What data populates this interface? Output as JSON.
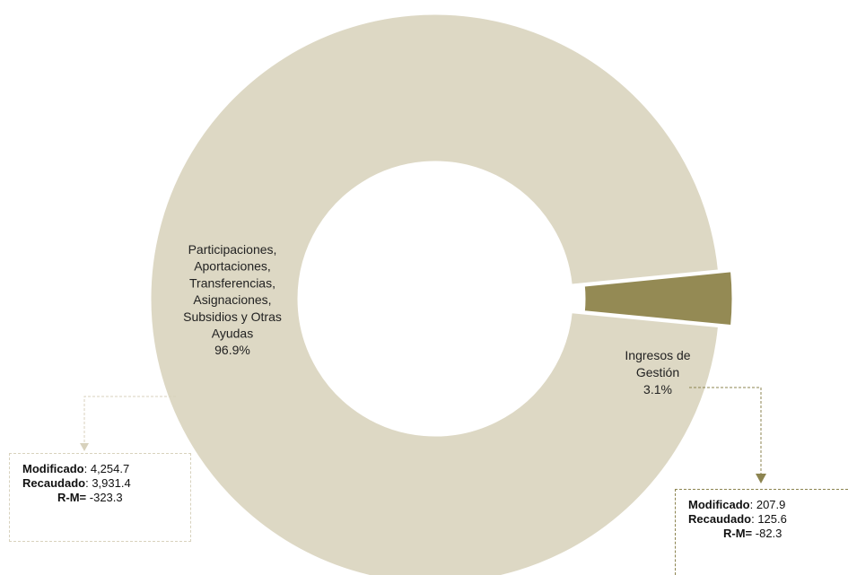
{
  "chart_data": {
    "type": "pie",
    "donut": true,
    "slices": [
      {
        "label_lines": [
          "Participaciones,",
          "Aportaciones,",
          "Transferencias,",
          "Asignaciones,",
          "Subsidios y Otras",
          "Ayudas"
        ],
        "percent_label": "96.9%",
        "value": 96.9,
        "color": "#ddd8c4",
        "modificado": "4,254.7",
        "recaudado": "3,931.4",
        "r_m": "-323.3"
      },
      {
        "label_lines": [
          "Ingresos de",
          "Gestión"
        ],
        "percent_label": "3.1%",
        "value": 3.1,
        "color": "#948a54",
        "exploded": true,
        "modificado": "207.9",
        "recaudado": "125.6",
        "r_m": "-82.3"
      }
    ],
    "legend": "none"
  },
  "boxes": {
    "modificado_label": "Modificado",
    "recaudado_label": "Recaudado",
    "rm_label": "R-M="
  }
}
